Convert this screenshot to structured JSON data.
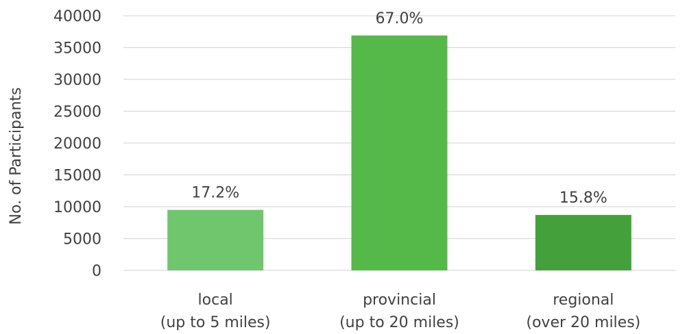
{
  "chart_data": {
    "type": "bar",
    "title": "",
    "xlabel": "",
    "ylabel": "No. of Participants",
    "ylim": [
      0,
      40000
    ],
    "yticks": [
      0,
      5000,
      10000,
      15000,
      20000,
      25000,
      30000,
      35000,
      40000
    ],
    "grid": true,
    "categories": [
      [
        "local",
        "(up to 5 miles)"
      ],
      [
        "provincial",
        "(up to 20 miles)"
      ],
      [
        "regional",
        "(over 20 miles)"
      ]
    ],
    "values": [
      9500,
      36900,
      8700
    ],
    "data_labels": [
      "17.2%",
      "67.0%",
      "15.8%"
    ],
    "colors": [
      "#70c66d",
      "#55b94a",
      "#43a03b"
    ]
  }
}
